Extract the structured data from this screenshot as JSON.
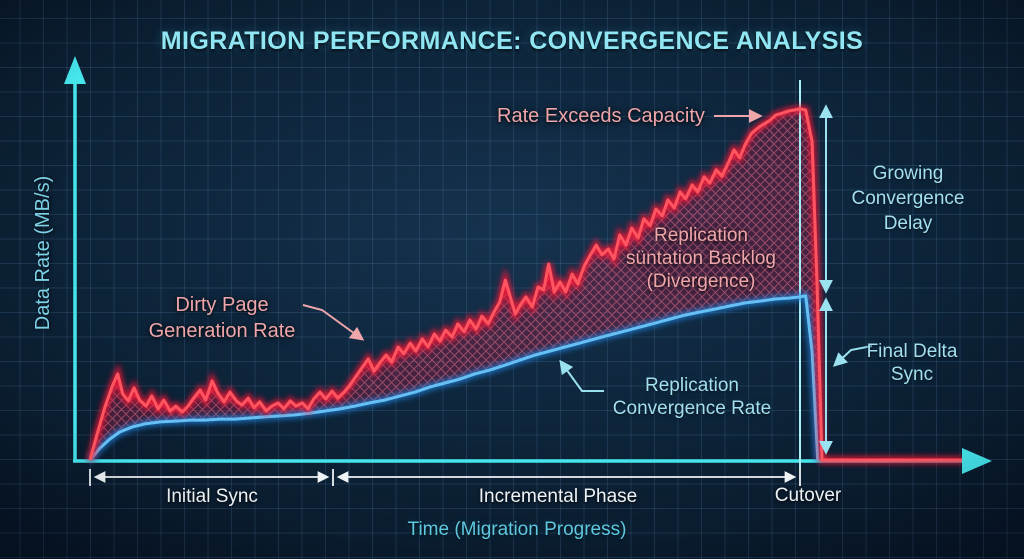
{
  "title": "MIGRATION PERFORMANCE: CONVERGENCE ANALYSIS",
  "y_axis_label": "Data Rate (MB/s)",
  "x_axis_label": "Time (Migration Progress)",
  "labels": {
    "rate_exceeds_capacity": "Rate Exceeds Capacity",
    "dirty_page_line1": "Dirty Page",
    "dirty_page_line2": "Generation Rate",
    "backlog_line1": "Replication",
    "backlog_line2": "süntation Backlog",
    "backlog_line3": "(Divergence)",
    "convergence_line1": "Replication",
    "convergence_line2": "Convergence Rate",
    "growing_line1": "Growing",
    "growing_line2": "Convergence",
    "growing_line3": "Delay",
    "final_delta_line1": "Final Delta",
    "final_delta_line2": "Sync",
    "phase_initial": "Initial Sync",
    "phase_incremental": "Incremental Phase",
    "phase_cutover": "Cutover"
  },
  "colors": {
    "background": "#0d2338",
    "grid": "#3a5d84",
    "axis_cyan": "#46e5ec",
    "red_line": "#ff4550",
    "blue_line": "#66c0f4",
    "divergence_fill": "#8c1c42",
    "hatch": "#ff7d96",
    "salmon_text": "#efa6ab",
    "cyan_text": "#a3dff0",
    "white_text": "#eef3f6",
    "title_text": "#90e6f2",
    "cutover_line": "#a8f0f8"
  },
  "chart_data": {
    "type": "line",
    "title": "Migration Performance: Convergence Analysis",
    "xlabel": "Time (Migration Progress)",
    "ylabel": "Data Rate (MB/s)",
    "x_units": "percent of migration progress (cutover = 100)",
    "y_units": "relative data rate (no numeric ticks shown; peak red rate = 100)",
    "xlim": [
      0,
      125
    ],
    "ylim": [
      0,
      105
    ],
    "grid": true,
    "legend_position": "inline annotations (no legend box)",
    "series": [
      {
        "id": "dirty-page-rate",
        "name": "Dirty Page Generation Rate",
        "color": "#ff4550",
        "points": [
          [
            0,
            0
          ],
          [
            1,
            7.4
          ],
          [
            2.1,
            15.1
          ],
          [
            3.1,
            20.9
          ],
          [
            3.9,
            24.6
          ],
          [
            4.6,
            18.9
          ],
          [
            5.4,
            16.9
          ],
          [
            6.2,
            20.6
          ],
          [
            7,
            17.1
          ],
          [
            7.9,
            15.4
          ],
          [
            8.7,
            18.3
          ],
          [
            9.6,
            14.6
          ],
          [
            10.4,
            17.1
          ],
          [
            11.3,
            14
          ],
          [
            12.1,
            15.4
          ],
          [
            13,
            13.7
          ],
          [
            13.8,
            15.4
          ],
          [
            14.6,
            17.7
          ],
          [
            15.5,
            20
          ],
          [
            16.3,
            17.1
          ],
          [
            17.2,
            22.6
          ],
          [
            18,
            19.1
          ],
          [
            18.9,
            16.6
          ],
          [
            19.7,
            19.4
          ],
          [
            20.6,
            16.9
          ],
          [
            21.4,
            15.7
          ],
          [
            22.3,
            17.7
          ],
          [
            23.1,
            14.9
          ],
          [
            23.9,
            16.6
          ],
          [
            24.8,
            14
          ],
          [
            25.6,
            15.4
          ],
          [
            26.5,
            16.3
          ],
          [
            27.3,
            14.6
          ],
          [
            28.2,
            16.9
          ],
          [
            29,
            15.4
          ],
          [
            29.9,
            16.3
          ],
          [
            30.7,
            14.6
          ],
          [
            31.5,
            17.4
          ],
          [
            32.4,
            19.4
          ],
          [
            33.2,
            17.4
          ],
          [
            34.1,
            19.7
          ],
          [
            34.9,
            17.7
          ],
          [
            35.8,
            19.4
          ],
          [
            36.6,
            21.4
          ],
          [
            37.5,
            24
          ],
          [
            38.3,
            26.3
          ],
          [
            39.2,
            28.9
          ],
          [
            40,
            25.4
          ],
          [
            40.8,
            27.7
          ],
          [
            41.7,
            30
          ],
          [
            42.5,
            28
          ],
          [
            43.4,
            32.3
          ],
          [
            44.2,
            30.3
          ],
          [
            45.1,
            33.4
          ],
          [
            45.9,
            31.1
          ],
          [
            46.8,
            34.6
          ],
          [
            47.6,
            32.3
          ],
          [
            48.5,
            36
          ],
          [
            49.3,
            34
          ],
          [
            50.1,
            37.1
          ],
          [
            51,
            35.1
          ],
          [
            51.8,
            38.9
          ],
          [
            52.7,
            36.6
          ],
          [
            53.5,
            40
          ],
          [
            54.4,
            37.4
          ],
          [
            55.2,
            41.1
          ],
          [
            56.1,
            38.9
          ],
          [
            56.9,
            42.3
          ],
          [
            57.7,
            45.1
          ],
          [
            58.5,
            51.4
          ],
          [
            59.2,
            46.6
          ],
          [
            59.9,
            41.7
          ],
          [
            60.6,
            44.3
          ],
          [
            61.4,
            46.6
          ],
          [
            62.3,
            43.7
          ],
          [
            63.1,
            49.4
          ],
          [
            63.9,
            48.6
          ],
          [
            64.6,
            56
          ],
          [
            65.4,
            48
          ],
          [
            66.2,
            50.9
          ],
          [
            67,
            48
          ],
          [
            67.9,
            53.1
          ],
          [
            68.7,
            50.3
          ],
          [
            69.6,
            55.4
          ],
          [
            70.4,
            58.3
          ],
          [
            71.3,
            61.4
          ],
          [
            72.1,
            58.6
          ],
          [
            73,
            60.3
          ],
          [
            73.8,
            57.4
          ],
          [
            74.6,
            64.3
          ],
          [
            75.5,
            61.4
          ],
          [
            76.3,
            66.3
          ],
          [
            77.2,
            63.4
          ],
          [
            78,
            68.9
          ],
          [
            78.9,
            66.9
          ],
          [
            79.7,
            71.7
          ],
          [
            80.6,
            69.7
          ],
          [
            81.4,
            74.3
          ],
          [
            82.3,
            72
          ],
          [
            83.1,
            76.6
          ],
          [
            83.9,
            74.6
          ],
          [
            84.8,
            78.6
          ],
          [
            85.6,
            76.6
          ],
          [
            86.5,
            80.9
          ],
          [
            87.3,
            79.1
          ],
          [
            88.2,
            82.9
          ],
          [
            89,
            81.1
          ],
          [
            89.9,
            84.9
          ],
          [
            90.7,
            88.6
          ],
          [
            91.5,
            86.3
          ],
          [
            92.4,
            90.6
          ],
          [
            93.2,
            93.4
          ],
          [
            94.1,
            94.9
          ],
          [
            94.9,
            96
          ],
          [
            95.8,
            97.1
          ],
          [
            96.6,
            98.6
          ],
          [
            97.5,
            99.1
          ],
          [
            98.3,
            99.7
          ],
          [
            99.2,
            100
          ],
          [
            100,
            100.3
          ],
          [
            100.8,
            100
          ],
          [
            101.7,
            90.9
          ],
          [
            102.4,
            50.9
          ],
          [
            103.1,
            0
          ],
          [
            123,
            0
          ]
        ]
      },
      {
        "id": "convergence-rate",
        "name": "Replication Convergence Rate",
        "color": "#66c0f4",
        "points": [
          [
            0,
            0
          ],
          [
            1.4,
            3.4
          ],
          [
            2.8,
            6
          ],
          [
            4.2,
            8
          ],
          [
            5.9,
            9.4
          ],
          [
            7.7,
            10.3
          ],
          [
            9.9,
            10.9
          ],
          [
            12,
            11.1
          ],
          [
            14.1,
            11.4
          ],
          [
            16.2,
            11.4
          ],
          [
            18.3,
            11.7
          ],
          [
            20.4,
            11.7
          ],
          [
            22.5,
            12
          ],
          [
            24.6,
            12.3
          ],
          [
            26.8,
            12.6
          ],
          [
            28.9,
            12.9
          ],
          [
            31,
            13.4
          ],
          [
            33.1,
            14
          ],
          [
            35.2,
            14.6
          ],
          [
            37.3,
            15.4
          ],
          [
            39.4,
            16.3
          ],
          [
            41.5,
            17.1
          ],
          [
            43.7,
            18.3
          ],
          [
            45.8,
            19.4
          ],
          [
            47.9,
            20.9
          ],
          [
            50,
            22
          ],
          [
            52.1,
            23.1
          ],
          [
            54.2,
            24.6
          ],
          [
            56.3,
            25.7
          ],
          [
            58.5,
            27.1
          ],
          [
            60.6,
            28.6
          ],
          [
            62.7,
            30
          ],
          [
            64.8,
            31.1
          ],
          [
            66.9,
            32.3
          ],
          [
            69,
            33.4
          ],
          [
            71.1,
            34.6
          ],
          [
            73.2,
            35.7
          ],
          [
            75.4,
            36.9
          ],
          [
            77.5,
            38
          ],
          [
            79.6,
            39.1
          ],
          [
            81.7,
            40.3
          ],
          [
            83.8,
            41.4
          ],
          [
            85.9,
            42.3
          ],
          [
            88,
            43.1
          ],
          [
            90.1,
            44
          ],
          [
            92.3,
            44.9
          ],
          [
            94.4,
            45.4
          ],
          [
            96.5,
            46
          ],
          [
            98.6,
            46.3
          ],
          [
            100,
            46.6
          ],
          [
            100.8,
            46.9
          ],
          [
            101.7,
            30.9
          ],
          [
            102.5,
            0
          ]
        ]
      }
    ],
    "area": {
      "name": "Replication süntation Backlog (Divergence)",
      "between": [
        "dirty-page-rate",
        "convergence-rate"
      ],
      "style": "dark red crosshatch"
    },
    "phases": [
      {
        "label": "Initial Sync",
        "progress_start": 0,
        "progress_end": 34
      },
      {
        "label": "Incremental Phase",
        "progress_start": 34,
        "progress_end": 100
      },
      {
        "label": "Cutover",
        "progress_start": 100,
        "progress_end": 103
      }
    ],
    "annotations": [
      {
        "text": "Rate Exceeds Capacity",
        "color": "#efa6ab",
        "points_to": "red series peak at cutover"
      },
      {
        "text": "Dirty Page Generation Rate",
        "color": "#efa6ab",
        "points_to": "red series rising segment"
      },
      {
        "text": "Replication süntation Backlog (Divergence)",
        "color": "#efa6ab",
        "points_to": "hatched area between curves"
      },
      {
        "text": "Replication Convergence Rate",
        "color": "#a3dff0",
        "points_to": "blue series"
      },
      {
        "text": "Growing Convergence Delay",
        "color": "#a3dff0",
        "points_to": "vertical gap between red peak and blue curve at cutover"
      },
      {
        "text": "Final Delta Sync",
        "color": "#a3dff0",
        "points_to": "vertical span from blue curve peak down to zero at cutover"
      }
    ]
  }
}
